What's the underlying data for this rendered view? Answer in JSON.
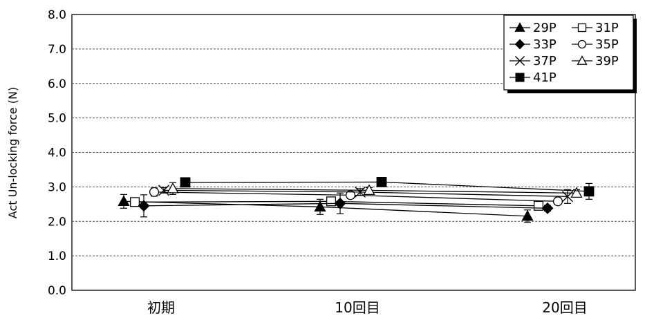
{
  "chart_data": {
    "type": "line",
    "title": "",
    "xlabel": "",
    "ylabel": "Act  Un-locking force (N)",
    "categories": [
      "初期",
      "10回目",
      "20回目"
    ],
    "ylim": [
      0,
      8
    ],
    "yticks": [
      "0.0",
      "1.0",
      "2.0",
      "3.0",
      "4.0",
      "5.0",
      "6.0",
      "7.0",
      "8.0"
    ],
    "grid": "horizontal-dashed",
    "legend_position": "top-right",
    "error_bars": true,
    "series": [
      {
        "name": "29P",
        "marker": "filled-triangle",
        "values": [
          2.58,
          2.42,
          2.15
        ],
        "err": [
          0.2,
          0.22,
          0.18
        ]
      },
      {
        "name": "31P",
        "marker": "open-square",
        "values": [
          2.56,
          2.58,
          2.45
        ],
        "err": [
          0.08,
          0.08,
          0.08
        ]
      },
      {
        "name": "33P",
        "marker": "filled-diamond",
        "values": [
          2.45,
          2.52,
          2.38
        ],
        "err": [
          0.32,
          0.3,
          0.08
        ]
      },
      {
        "name": "35P",
        "marker": "open-circle",
        "values": [
          2.85,
          2.76,
          2.58
        ],
        "err": [
          0.12,
          0.1,
          0.1
        ]
      },
      {
        "name": "37P",
        "marker": "cross",
        "values": [
          2.9,
          2.85,
          2.72
        ],
        "err": [
          0.08,
          0.1,
          0.2
        ]
      },
      {
        "name": "39P",
        "marker": "open-triangle",
        "values": [
          2.95,
          2.9,
          2.82
        ],
        "err": [
          0.17,
          0.08,
          0.1
        ]
      },
      {
        "name": "41P",
        "marker": "filled-square",
        "values": [
          3.13,
          3.14,
          2.87
        ],
        "err": [
          0.06,
          0.06,
          0.23
        ]
      }
    ]
  }
}
